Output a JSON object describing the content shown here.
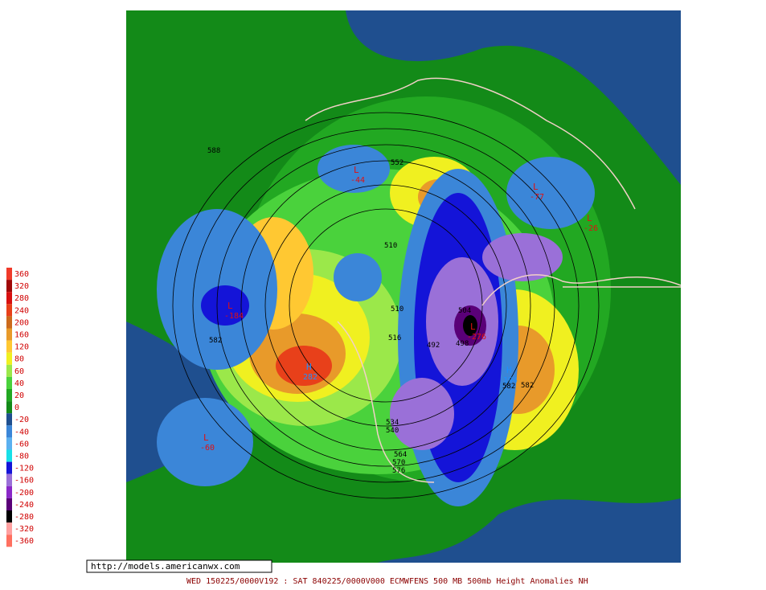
{
  "map": {
    "footer": "WED 150225/0000V192 : SAT 840225/0000V000  ECMWFENS  500 MB 500mb Height Anomalies NH",
    "url": "http://models.americanwx.com",
    "legend": {
      "levels": [
        {
          "value": 360,
          "color": "#f03a2a"
        },
        {
          "value": 320,
          "color": "#a00808"
        },
        {
          "value": 280,
          "color": "#d81010"
        },
        {
          "value": 240,
          "color": "#e8401a"
        },
        {
          "value": 200,
          "color": "#cc6a1c"
        },
        {
          "value": 160,
          "color": "#e89a2a"
        },
        {
          "value": 120,
          "color": "#ffc832"
        },
        {
          "value": 80,
          "color": "#f0f020"
        },
        {
          "value": 60,
          "color": "#9be84a"
        },
        {
          "value": 40,
          "color": "#4ad23c"
        },
        {
          "value": 20,
          "color": "#22a822"
        },
        {
          "value": 0,
          "color": "#138a18"
        },
        {
          "value": -20,
          "color": "#1f4f8f"
        },
        {
          "value": -40,
          "color": "#3b86d8"
        },
        {
          "value": -60,
          "color": "#5bb0f0"
        },
        {
          "value": -80,
          "color": "#18e0e8"
        },
        {
          "value": -120,
          "color": "#1414d8"
        },
        {
          "value": -160,
          "color": "#9a70d8"
        },
        {
          "value": -200,
          "color": "#8a28c8"
        },
        {
          "value": -240,
          "color": "#5a0078"
        },
        {
          "value": -280,
          "color": "#000000"
        },
        {
          "value": -320,
          "color": "#ffa0a0"
        },
        {
          "value": -360,
          "color": "#ff7060"
        }
      ]
    },
    "centers": [
      {
        "letter": "L",
        "value": "-60"
      },
      {
        "letter": "H",
        "value": "282"
      },
      {
        "letter": "L",
        "value": "-184"
      },
      {
        "letter": "L",
        "value": "-276"
      },
      {
        "letter": "H",
        "value": "194"
      },
      {
        "letter": "L",
        "value": "-77"
      },
      {
        "letter": "L",
        "value": "-26"
      },
      {
        "letter": "L",
        "value": "-44"
      }
    ],
    "contours": [
      "588",
      "582",
      "552",
      "510",
      "510",
      "492",
      "498",
      "504",
      "516",
      "582",
      "582",
      "564",
      "570",
      "576",
      "534",
      "540"
    ]
  }
}
